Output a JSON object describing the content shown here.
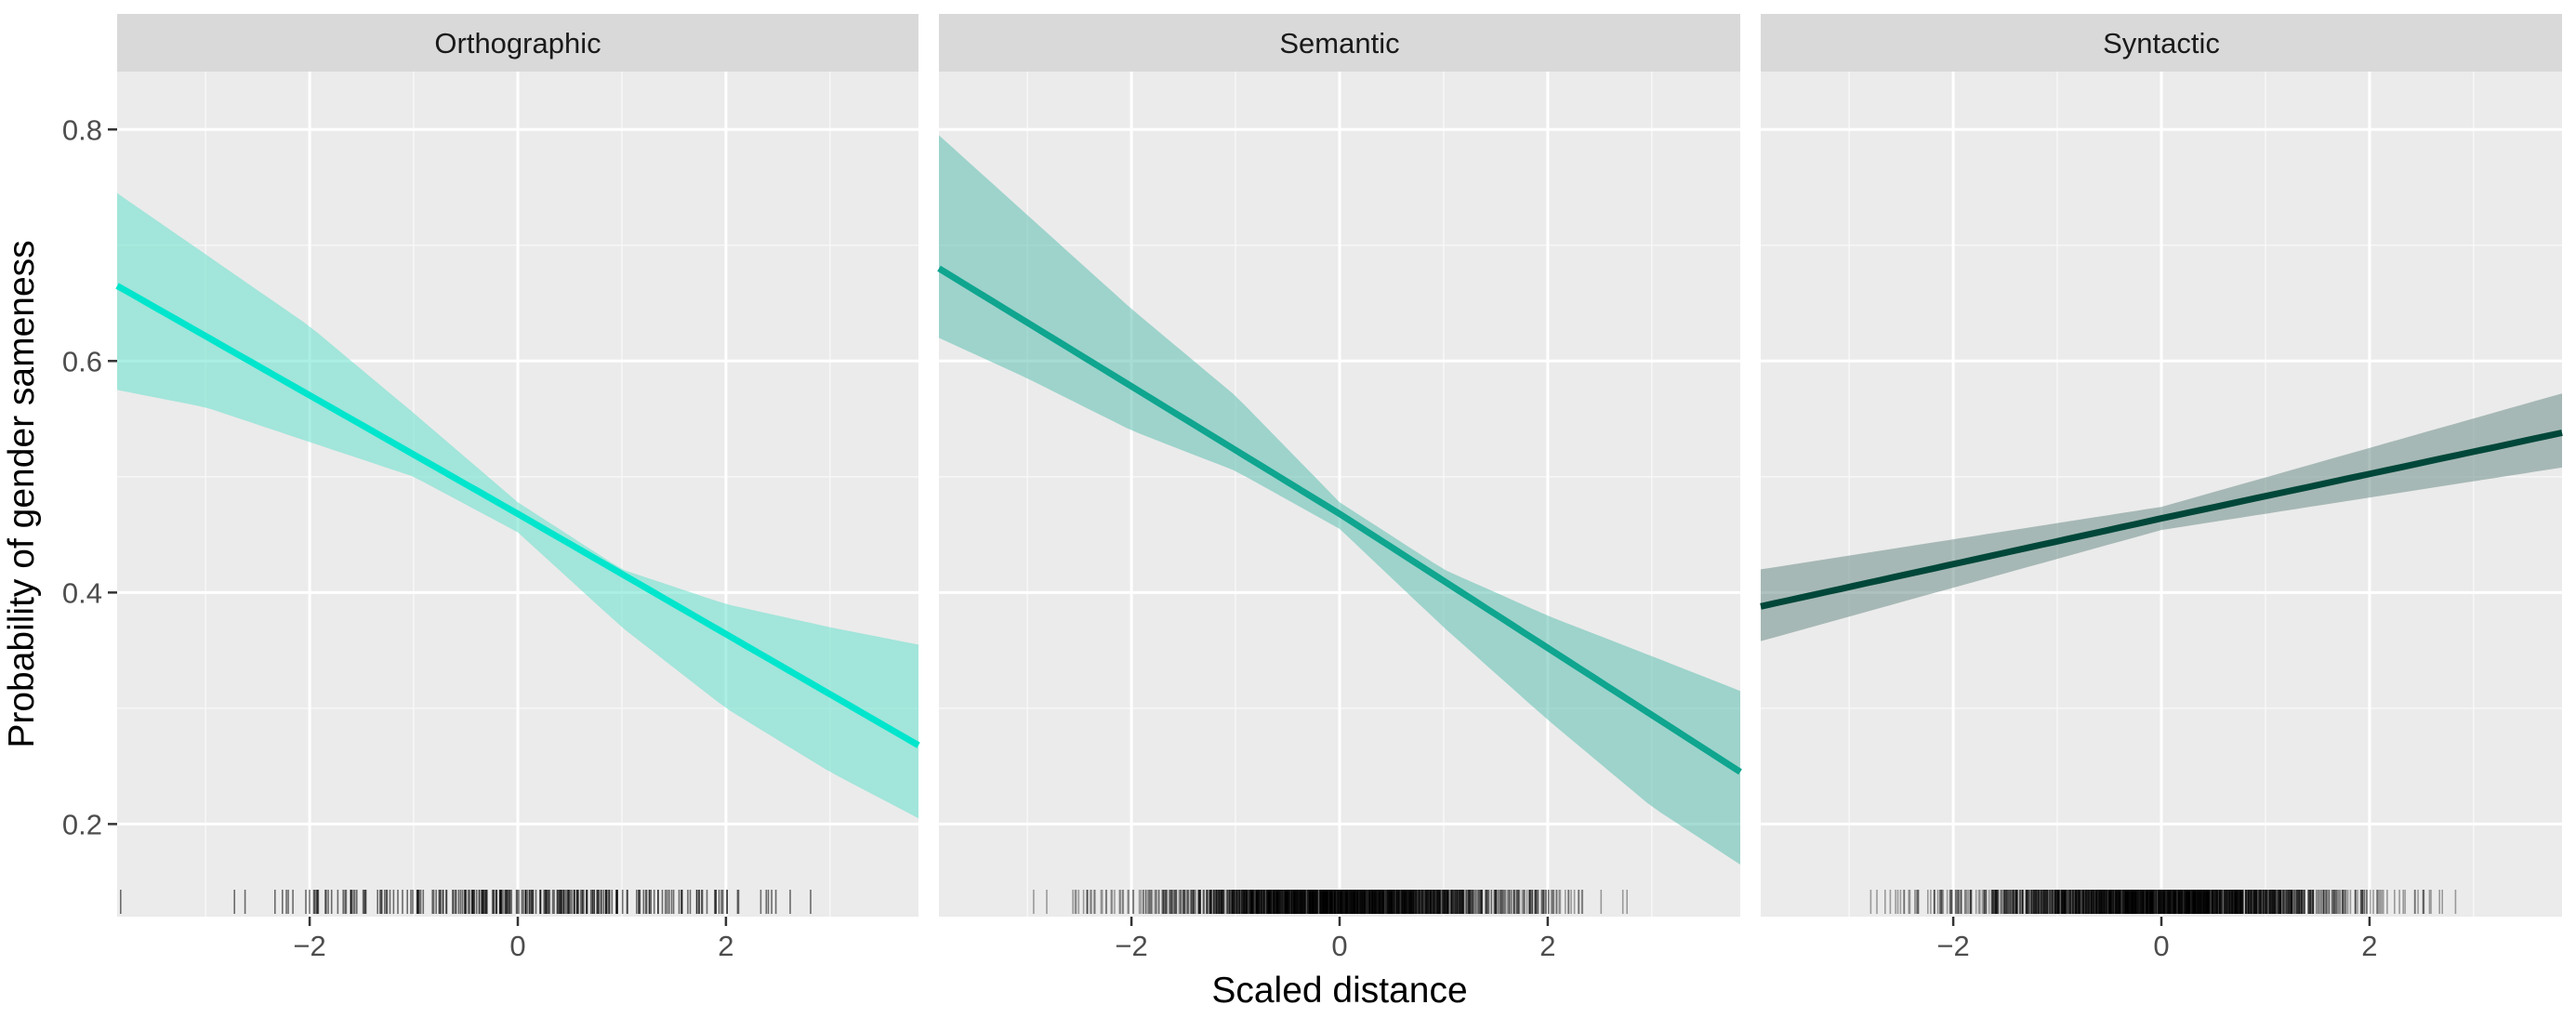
{
  "chart_data": {
    "type": "line",
    "xlabel": "Scaled distance",
    "ylabel": "Probability of gender sameness",
    "xlim": [
      -3.85,
      3.85
    ],
    "ylim": [
      0.12,
      0.85
    ],
    "x_ticks": [
      -2,
      0,
      2
    ],
    "x_tick_labels": [
      "−2",
      "0",
      "2"
    ],
    "y_ticks": [
      0.2,
      0.4,
      0.6,
      0.8
    ],
    "y_tick_labels": [
      "0.2",
      "0.4",
      "0.6",
      "0.8"
    ],
    "grid": true,
    "facets": [
      {
        "name": "Orthographic",
        "line_color": "#00e5cc",
        "ribbon_color": "#66e0cc",
        "rug_density": "sparse",
        "fit": {
          "x": [
            -3.85,
            0,
            3.85
          ],
          "y": [
            0.665,
            0.468,
            0.268
          ]
        },
        "ci_upper": {
          "x": [
            -3.85,
            -2,
            -1,
            0,
            1,
            2,
            3,
            3.85
          ],
          "y": [
            0.745,
            0.63,
            0.555,
            0.478,
            0.42,
            0.39,
            0.37,
            0.355
          ]
        },
        "ci_lower": {
          "x": [
            -3.85,
            -3,
            -2,
            -1,
            0,
            1,
            2,
            3,
            3.85
          ],
          "y": [
            0.575,
            0.56,
            0.53,
            0.5,
            0.452,
            0.37,
            0.3,
            0.245,
            0.205
          ]
        }
      },
      {
        "name": "Semantic",
        "line_color": "#0fa58f",
        "ribbon_color": "#5cc0b0",
        "rug_density": "dense",
        "fit": {
          "x": [
            -3.85,
            0,
            3.85
          ],
          "y": [
            0.68,
            0.468,
            0.245
          ]
        },
        "ci_upper": {
          "x": [
            -3.85,
            -2,
            -1,
            0,
            1,
            2,
            3,
            3.85
          ],
          "y": [
            0.795,
            0.645,
            0.57,
            0.478,
            0.42,
            0.38,
            0.345,
            0.315
          ]
        },
        "ci_lower": {
          "x": [
            -3.85,
            -3,
            -2,
            -1,
            0,
            1,
            2,
            3,
            3.85
          ],
          "y": [
            0.62,
            0.585,
            0.54,
            0.505,
            0.455,
            0.37,
            0.29,
            0.215,
            0.165
          ]
        }
      },
      {
        "name": "Syntactic",
        "line_color": "#00473a",
        "ribbon_color": "#6e8e88",
        "rug_density": "dense",
        "fit": {
          "x": [
            -3.85,
            0,
            3.85
          ],
          "y": [
            0.388,
            0.464,
            0.538
          ]
        },
        "ci_upper": {
          "x": [
            -3.85,
            0,
            3.85
          ],
          "y": [
            0.42,
            0.474,
            0.572
          ]
        },
        "ci_lower": {
          "x": [
            -3.85,
            0,
            3.85
          ],
          "y": [
            0.358,
            0.454,
            0.508
          ]
        }
      }
    ]
  }
}
